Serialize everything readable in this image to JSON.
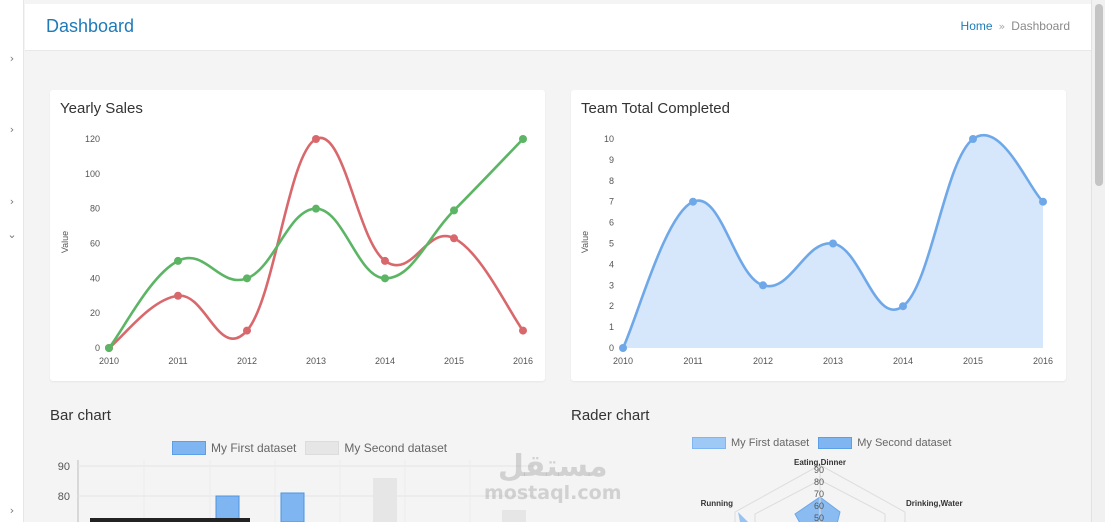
{
  "header": {
    "title": "Dashboard",
    "breadcrumb": {
      "home": "Home",
      "separator": "»",
      "current": "Dashboard"
    }
  },
  "sidebar": {
    "chevrons": [
      "›",
      "›",
      "›",
      "⌄",
      "›"
    ]
  },
  "colors": {
    "accent": "#1e7bb8",
    "red": "#d9686d",
    "green": "#5cb564",
    "blue": "#6fa8e8",
    "blue_fill": "#d6e6fb"
  },
  "yearly_sales": {
    "title": "Yearly Sales",
    "ylabel": "Value"
  },
  "team_total": {
    "title": "Team Total Completed",
    "ylabel": "Value"
  },
  "bar_section": {
    "title": "Bar chart",
    "legend": [
      "My First dataset",
      "My Second dataset"
    ]
  },
  "radar_section": {
    "title": "Rader chart",
    "legend": [
      "My First dataset",
      "My Second dataset"
    ],
    "axis_labels": [
      "Eating,Dinner",
      "Drinking,Water",
      "Running"
    ],
    "ticks": [
      "90",
      "80",
      "70",
      "60",
      "50"
    ]
  },
  "watermark": {
    "text": "مستقل",
    "domain": "mostaql.com"
  },
  "chart_data": [
    {
      "type": "line",
      "title": "Yearly Sales",
      "x": [
        "2010",
        "2011",
        "2012",
        "2013",
        "2014",
        "2015",
        "2016"
      ],
      "ylabel": "Value",
      "ylim": [
        0,
        120
      ],
      "yticks": [
        0,
        20,
        40,
        60,
        80,
        100,
        120
      ],
      "series": [
        {
          "color": "#d9686d",
          "values": [
            0,
            30,
            10,
            120,
            50,
            63,
            10
          ]
        },
        {
          "color": "#5cb564",
          "values": [
            0,
            50,
            40,
            80,
            40,
            79,
            120
          ]
        }
      ],
      "grid": false
    },
    {
      "type": "area",
      "title": "Team Total Completed",
      "x": [
        "2010",
        "2011",
        "2012",
        "2013",
        "2014",
        "2015",
        "2016"
      ],
      "ylabel": "Value",
      "ylim": [
        0,
        10
      ],
      "yticks": [
        0,
        1,
        2,
        3,
        4,
        5,
        6,
        7,
        8,
        9,
        10
      ],
      "series": [
        {
          "color": "#6fa8e8",
          "values": [
            0,
            7,
            3,
            5,
            2,
            10,
            7
          ]
        }
      ],
      "grid": false
    },
    {
      "type": "bar",
      "title": "Bar chart",
      "yticks": [
        80,
        90
      ],
      "series": [
        {
          "name": "My First dataset",
          "color": "#7fb6f2",
          "values": [
            80,
            81
          ]
        },
        {
          "name": "My Second dataset",
          "color": "#e6e6e6",
          "values": [
            86
          ]
        }
      ],
      "legend": "top"
    }
  ]
}
